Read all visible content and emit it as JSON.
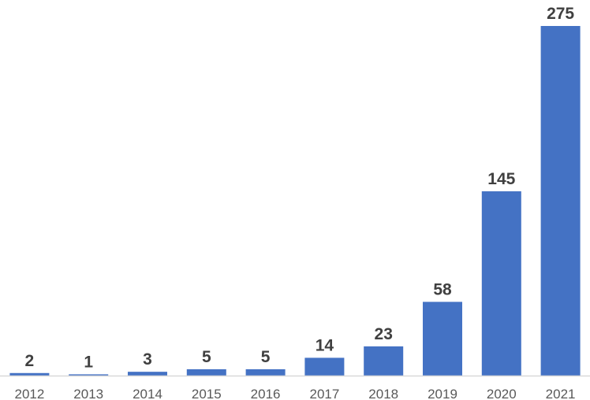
{
  "chart_data": {
    "type": "bar",
    "title": "",
    "xlabel": "",
    "ylabel": "",
    "categories": [
      "2012",
      "2013",
      "2014",
      "2015",
      "2016",
      "2017",
      "2018",
      "2019",
      "2020",
      "2021"
    ],
    "values": [
      2,
      1,
      3,
      5,
      5,
      14,
      23,
      58,
      145,
      275
    ],
    "ylim": [
      0,
      275
    ],
    "grid": false,
    "legend": "none",
    "data_labels": true,
    "bar_color": "#4472C4",
    "axis_color": "#D9D9D9",
    "label_color": "#404040",
    "tick_color": "#595959"
  }
}
